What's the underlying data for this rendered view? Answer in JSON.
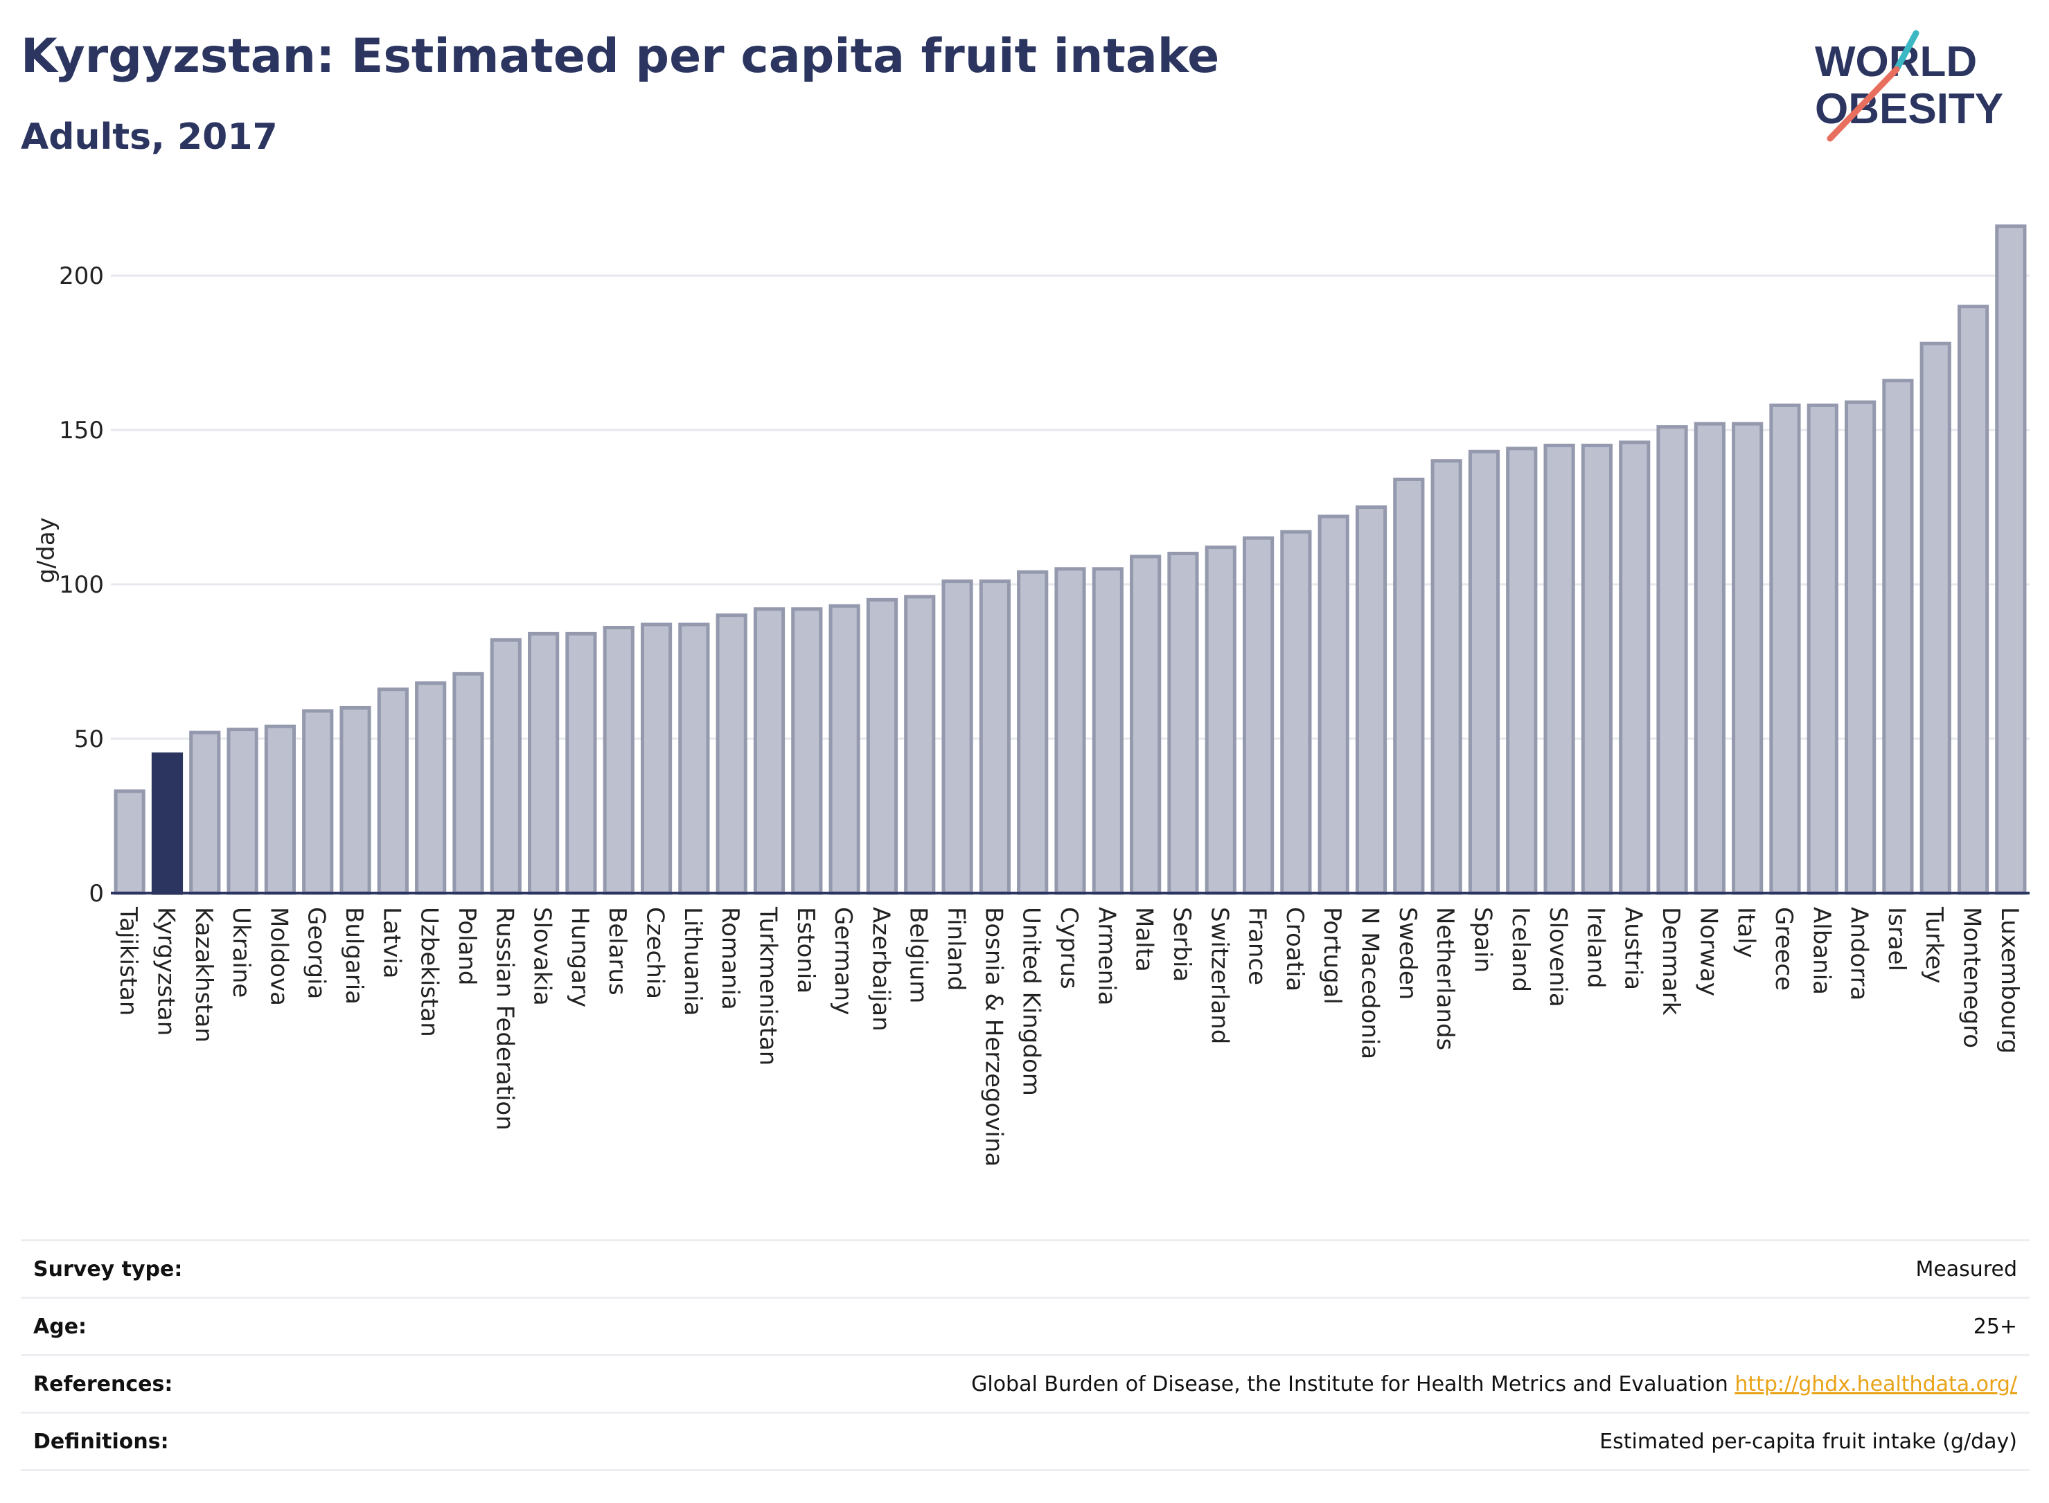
{
  "header": {
    "title": "Kyrgyzstan: Estimated per capita fruit intake",
    "subtitle": "Adults, 2017",
    "logo_line1": "WORLD",
    "logo_line2": "OBESITY"
  },
  "colors": {
    "bar": "#bcc0cf",
    "bar_border": "#9499ad",
    "highlight": "#2b3560",
    "accent_teal": "#3bb8c4",
    "accent_salmon": "#e86f5e"
  },
  "chart_data": {
    "type": "bar",
    "title": "Kyrgyzstan: Estimated per capita fruit intake",
    "subtitle": "Adults, 2017",
    "ylabel": "g/day",
    "ylim": [
      0,
      222
    ],
    "yticks": [
      0,
      50,
      100,
      150,
      200
    ],
    "grid": true,
    "highlight": "Kyrgyzstan",
    "categories": [
      "Tajikistan",
      "Kyrgyzstan",
      "Kazakhstan",
      "Ukraine",
      "Moldova",
      "Georgia",
      "Bulgaria",
      "Latvia",
      "Uzbekistan",
      "Poland",
      "Russian Federation",
      "Slovakia",
      "Hungary",
      "Belarus",
      "Czechia",
      "Lithuania",
      "Romania",
      "Turkmenistan",
      "Estonia",
      "Germany",
      "Azerbaijan",
      "Belgium",
      "Finland",
      "Bosnia & Herzegovina",
      "United Kingdom",
      "Cyprus",
      "Armenia",
      "Malta",
      "Serbia",
      "Switzerland",
      "France",
      "Croatia",
      "Portugal",
      "N Macedonia",
      "Sweden",
      "Netherlands",
      "Spain",
      "Iceland",
      "Slovenia",
      "Ireland",
      "Austria",
      "Denmark",
      "Norway",
      "Italy",
      "Greece",
      "Albania",
      "Andorra",
      "Israel",
      "Turkey",
      "Montenegro",
      "Luxembourg"
    ],
    "values": [
      33,
      45,
      52,
      53,
      54,
      59,
      60,
      66,
      68,
      71,
      82,
      84,
      84,
      86,
      87,
      87,
      90,
      92,
      92,
      93,
      95,
      96,
      101,
      101,
      104,
      105,
      105,
      109,
      110,
      112,
      115,
      117,
      122,
      125,
      134,
      140,
      143,
      144,
      145,
      145,
      146,
      151,
      152,
      152,
      158,
      158,
      159,
      166,
      178,
      190,
      216
    ]
  },
  "info": {
    "rows": [
      {
        "label": "Survey type:",
        "value": "Measured",
        "link": ""
      },
      {
        "label": "Age:",
        "value": "25+",
        "link": ""
      },
      {
        "label": "References:",
        "value": "Global Burden of Disease, the Institute for Health Metrics and Evaluation",
        "link": "http://ghdx.healthdata.org/"
      },
      {
        "label": "Definitions:",
        "value": "Estimated per-capita fruit intake (g/day)",
        "link": ""
      }
    ]
  }
}
